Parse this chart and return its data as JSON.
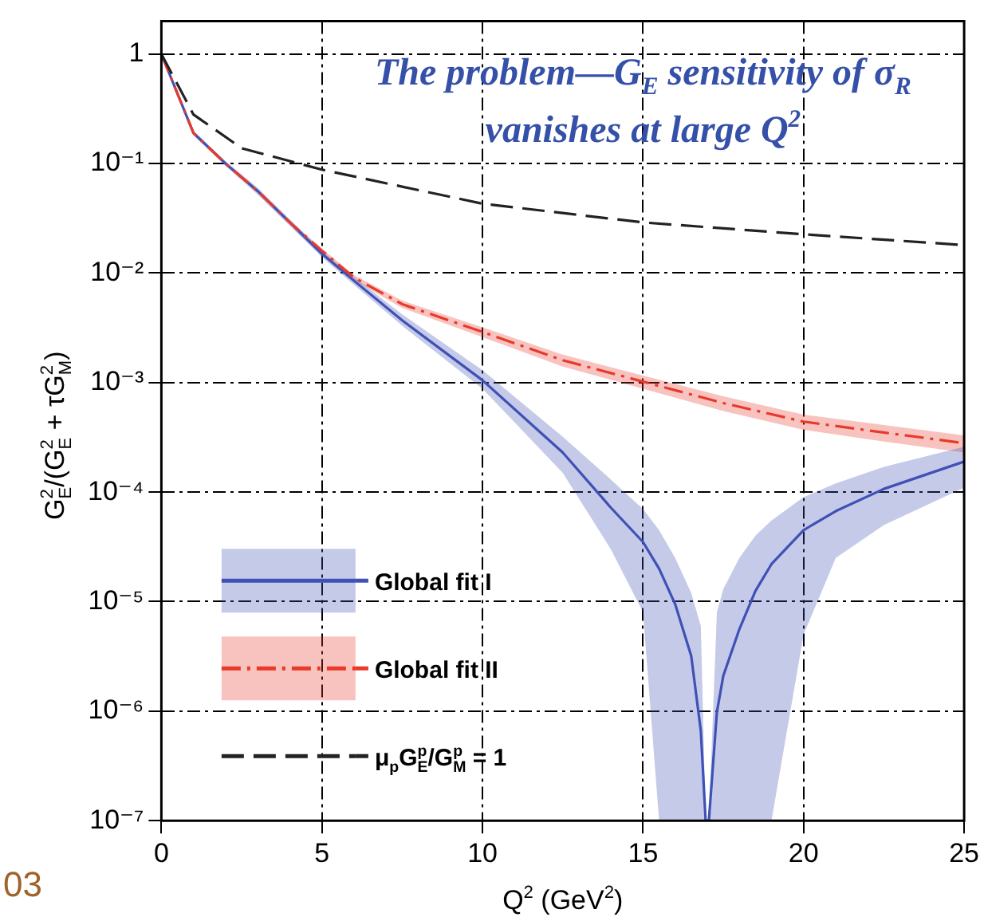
{
  "chart_data": {
    "type": "line",
    "title": "The problem—G$_{E}$ sensitivity of σ$_{R}$ vanishes at large Q$^{2}$",
    "xlabel": "Q$^{2}$ (GeV$^{2}$)",
    "ylabel": "G$_{E}$$^{2}$/(G$_{E}$$^{2}$ + τG$_{M}$$^{2}$)",
    "log": "y",
    "grid": true,
    "legend": "bottom left",
    "marker": "none",
    "xlim": [
      0,
      25
    ],
    "xticks": [
      0,
      5,
      10,
      15,
      20,
      25
    ],
    "ylim": [
      1e-07,
      2
    ],
    "yticks": [
      {
        "value": 1e-07,
        "label": "10⁻⁷"
      },
      {
        "value": 1e-06,
        "label": "10⁻⁶"
      },
      {
        "value": 1e-05,
        "label": "10⁻⁵"
      },
      {
        "value": 0.0001,
        "label": "10⁻⁴"
      },
      {
        "value": 0.001,
        "label": "10⁻³"
      },
      {
        "value": 0.01,
        "label": "10⁻²"
      },
      {
        "value": 0.1,
        "label": "10⁻¹"
      },
      1
    ],
    "annotations": [
      "03"
    ],
    "series": [
      {
        "name": "Global fit I",
        "color": "#3f51b5",
        "line_style": "solid",
        "x": [
          0,
          1,
          2,
          3,
          4,
          5,
          6,
          7.5,
          10,
          12.5,
          14,
          15,
          15.5,
          16,
          16.5,
          16.8,
          16.95,
          17.05,
          17.3,
          17.5,
          18,
          18.5,
          19,
          20,
          21,
          22.5,
          25
        ],
        "values": [
          1,
          0.19,
          0.1,
          0.056,
          0.029,
          0.015,
          0.0085,
          0.0037,
          0.00105,
          0.00023,
          7.2e-05,
          3.5e-05,
          2e-05,
          9.5e-06,
          3.2e-06,
          6.6e-07,
          1e-07,
          1e-07,
          9.8e-07,
          2.1e-06,
          5.6e-06,
          1.25e-05,
          2.2e-05,
          4.5e-05,
          6.7e-05,
          0.000107,
          0.00019
        ],
        "lower": [
          1,
          0.18,
          0.095,
          0.052,
          0.027,
          0.014,
          0.0078,
          0.0033,
          0.00088,
          0.00015,
          3e-05,
          8e-06,
          1e-07,
          1e-07,
          1e-07,
          1e-07,
          1e-07,
          1e-07,
          1e-07,
          1e-07,
          1e-07,
          1e-07,
          1e-07,
          5e-06,
          2.5e-05,
          5e-05,
          0.00011
        ],
        "upper": [
          1,
          0.2,
          0.105,
          0.06,
          0.031,
          0.016,
          0.0092,
          0.0042,
          0.0013,
          0.00032,
          0.00013,
          7e-05,
          4.5e-05,
          2.5e-05,
          1.2e-05,
          6e-06,
          1e-07,
          1e-07,
          8e-06,
          1.3e-05,
          2.5e-05,
          4e-05,
          5.5e-05,
          9e-05,
          0.00012,
          0.00017,
          0.00026
        ]
      },
      {
        "name": "Global fit II",
        "color": "#e8392b",
        "line_style": "dashdot",
        "x": [
          0,
          1,
          2,
          3,
          4,
          5,
          6,
          7.5,
          10,
          12.5,
          15,
          17.5,
          20,
          22.5,
          25
        ],
        "values": [
          1,
          0.19,
          0.1,
          0.056,
          0.029,
          0.016,
          0.0091,
          0.0052,
          0.0029,
          0.0016,
          0.00102,
          0.00065,
          0.00044,
          0.00035,
          0.00028
        ],
        "lower": [
          1,
          0.185,
          0.097,
          0.054,
          0.028,
          0.0152,
          0.0086,
          0.0048,
          0.0026,
          0.0014,
          0.00088,
          0.00055,
          0.00037,
          0.00029,
          0.00023
        ],
        "upper": [
          1,
          0.195,
          0.103,
          0.058,
          0.03,
          0.0168,
          0.0096,
          0.0056,
          0.0032,
          0.0018,
          0.00116,
          0.00075,
          0.00051,
          0.00041,
          0.00033
        ]
      },
      {
        "name": "μ$_{p}$G$_{E}$$^{p}$/G$_{M}$$^{p}$ = 1",
        "color": "#222222",
        "line_style": "dashed",
        "x": [
          0,
          1,
          2.5,
          5,
          10,
          15,
          20,
          25
        ],
        "values": [
          1,
          0.28,
          0.138,
          0.088,
          0.043,
          0.029,
          0.0226,
          0.018
        ]
      }
    ]
  }
}
